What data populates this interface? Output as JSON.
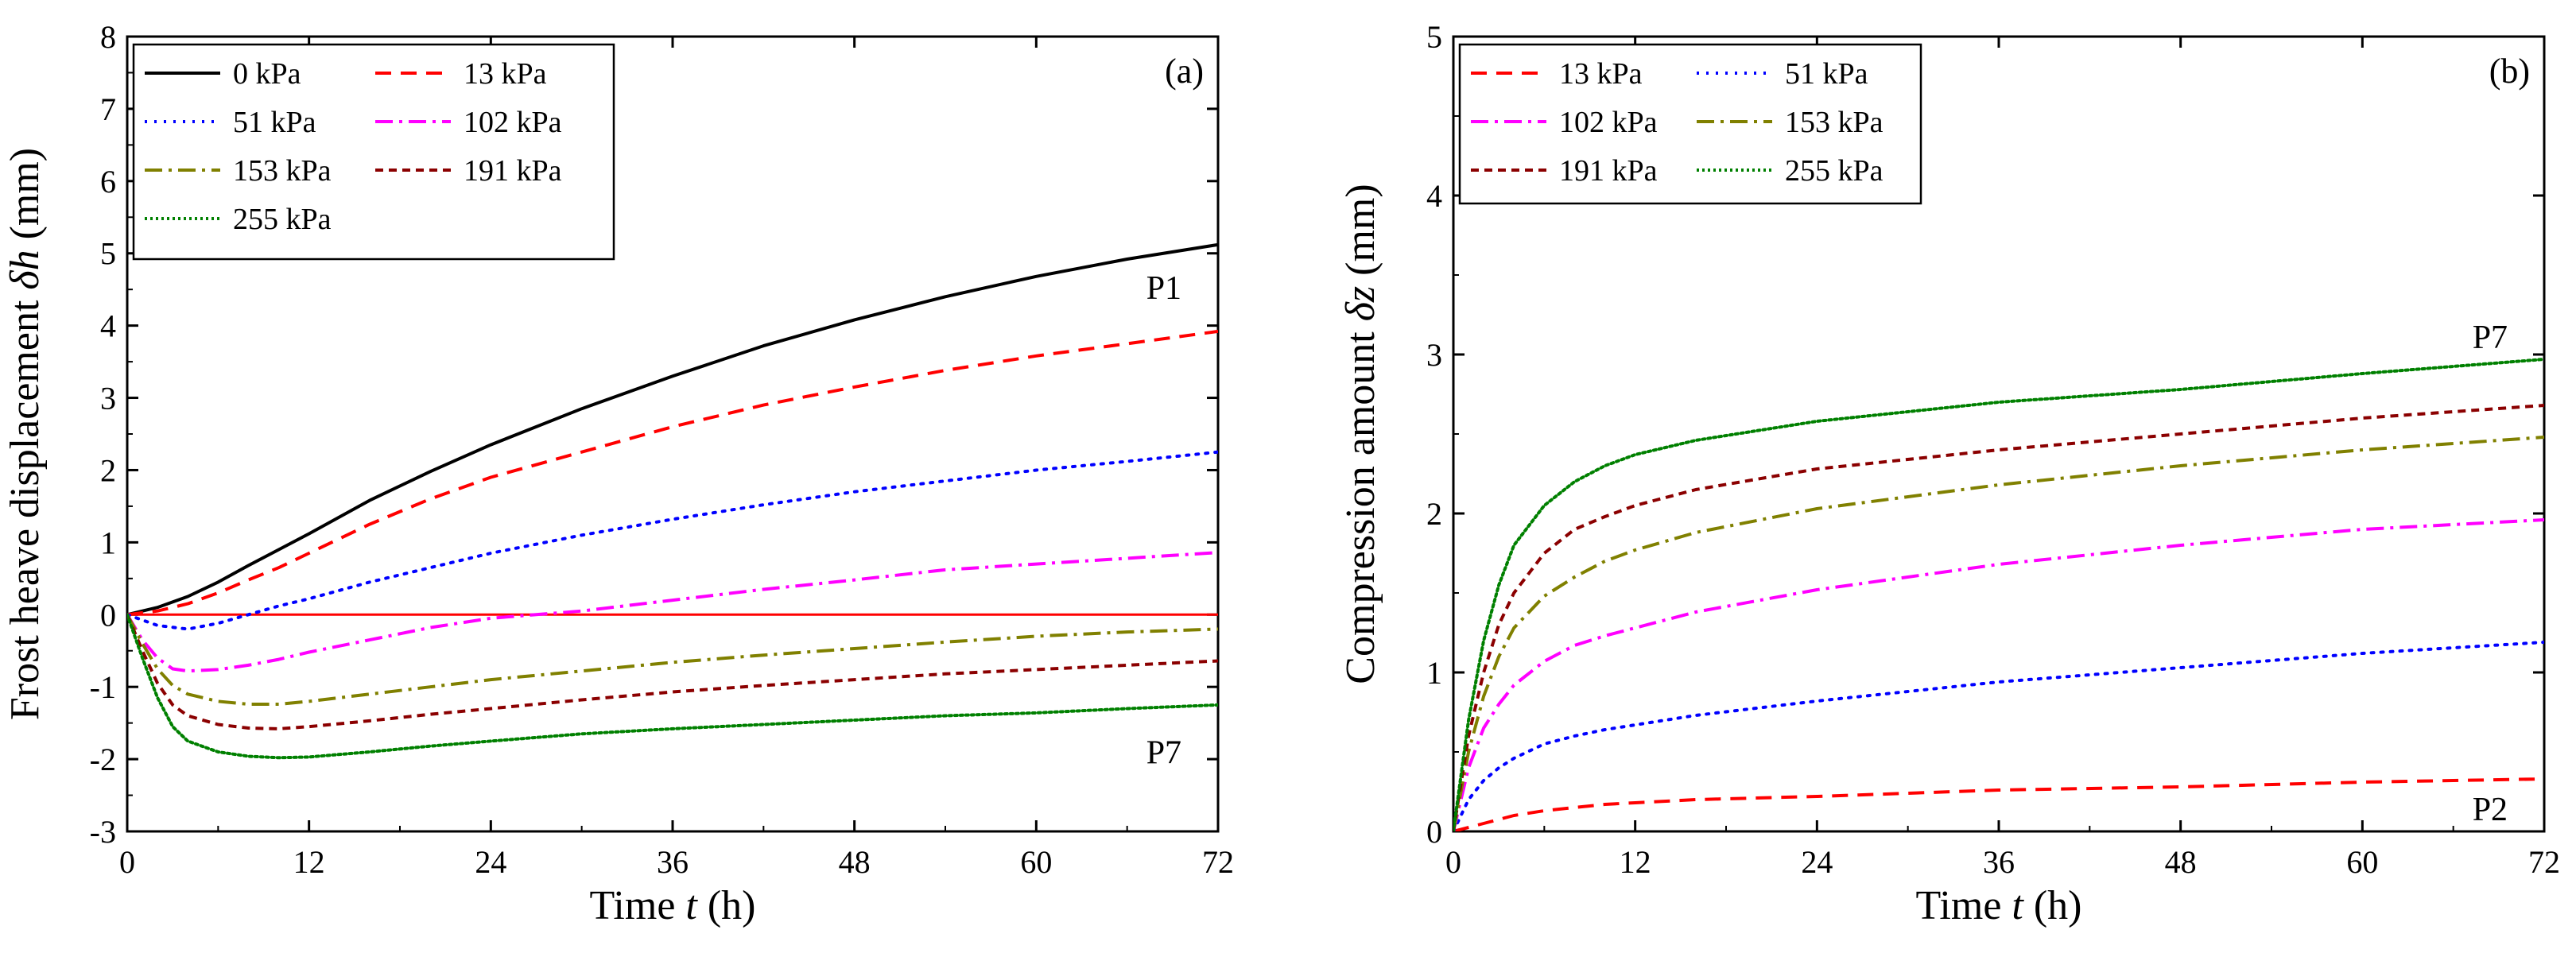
{
  "chart_data": [
    {
      "type": "line",
      "panel_label": "(a)",
      "xlabel": {
        "pre": "Time ",
        "var": "t",
        "post": " (h)"
      },
      "ylabel": {
        "pre": "Frost heave displacement ",
        "var": "δh",
        "post": " (mm)"
      },
      "xlim": [
        0,
        72
      ],
      "ylim": [
        -3,
        8
      ],
      "xticks": [
        0,
        12,
        24,
        36,
        48,
        60,
        72
      ],
      "yticks": [
        -3,
        -2,
        -1,
        0,
        1,
        2,
        3,
        4,
        5,
        6,
        7,
        8
      ],
      "legend_position": "top-left",
      "reference_line": {
        "y": 0,
        "color": "#ff0000"
      },
      "annotations": [
        {
          "text": "P1",
          "x": 70,
          "y": 4.5
        },
        {
          "text": "P7",
          "x": 70,
          "y": -1.75
        }
      ],
      "series": [
        {
          "name": "0 kPa",
          "color": "#000000",
          "dash": "solid",
          "x": [
            0,
            2,
            4,
            6,
            8,
            10,
            12,
            16,
            20,
            24,
            30,
            36,
            42,
            48,
            54,
            60,
            66,
            72
          ],
          "y": [
            0,
            0.1,
            0.25,
            0.45,
            0.68,
            0.9,
            1.12,
            1.58,
            1.98,
            2.35,
            2.85,
            3.3,
            3.72,
            4.08,
            4.4,
            4.68,
            4.92,
            5.12
          ]
        },
        {
          "name": "13 kPa",
          "color": "#ff0000",
          "dash": "dashed",
          "x": [
            0,
            2,
            4,
            6,
            8,
            10,
            12,
            16,
            20,
            24,
            30,
            36,
            42,
            48,
            54,
            60,
            66,
            72
          ],
          "y": [
            0,
            0.05,
            0.15,
            0.3,
            0.48,
            0.65,
            0.85,
            1.25,
            1.6,
            1.9,
            2.25,
            2.6,
            2.9,
            3.15,
            3.38,
            3.58,
            3.75,
            3.92
          ]
        },
        {
          "name": "51 kPa",
          "color": "#0000ff",
          "dash": "dotted",
          "x": [
            0,
            2,
            4,
            6,
            8,
            10,
            12,
            16,
            20,
            24,
            30,
            36,
            42,
            48,
            54,
            60,
            66,
            72
          ],
          "y": [
            0,
            -0.15,
            -0.2,
            -0.12,
            0,
            0.12,
            0.22,
            0.45,
            0.65,
            0.85,
            1.1,
            1.32,
            1.52,
            1.7,
            1.85,
            2.0,
            2.12,
            2.25
          ]
        },
        {
          "name": "102 kPa",
          "color": "#ff00ff",
          "dash": "dashdot",
          "x": [
            0,
            1,
            2,
            3,
            4,
            6,
            8,
            10,
            12,
            16,
            20,
            24,
            30,
            36,
            42,
            48,
            54,
            60,
            66,
            72
          ],
          "y": [
            0,
            -0.35,
            -0.6,
            -0.75,
            -0.78,
            -0.76,
            -0.7,
            -0.62,
            -0.52,
            -0.35,
            -0.18,
            -0.05,
            0.05,
            0.2,
            0.35,
            0.48,
            0.62,
            0.7,
            0.78,
            0.86
          ]
        },
        {
          "name": "153 kPa",
          "color": "#808000",
          "dash": "dashdot",
          "x": [
            0,
            1,
            2,
            3,
            4,
            6,
            8,
            10,
            12,
            16,
            20,
            24,
            30,
            36,
            42,
            48,
            54,
            60,
            66,
            72
          ],
          "y": [
            0,
            -0.4,
            -0.75,
            -0.98,
            -1.1,
            -1.2,
            -1.24,
            -1.24,
            -1.2,
            -1.1,
            -1.0,
            -0.9,
            -0.78,
            -0.66,
            -0.56,
            -0.47,
            -0.38,
            -0.3,
            -0.24,
            -0.2
          ]
        },
        {
          "name": "191 kPa",
          "color": "#8b0000",
          "dash": "shortdash",
          "x": [
            0,
            1,
            2,
            3,
            4,
            6,
            8,
            10,
            12,
            16,
            20,
            24,
            30,
            36,
            42,
            48,
            54,
            60,
            66,
            72
          ],
          "y": [
            0,
            -0.5,
            -0.95,
            -1.25,
            -1.4,
            -1.52,
            -1.57,
            -1.58,
            -1.55,
            -1.47,
            -1.38,
            -1.3,
            -1.18,
            -1.07,
            -0.98,
            -0.9,
            -0.82,
            -0.76,
            -0.7,
            -0.64
          ]
        },
        {
          "name": "255 kPa",
          "color": "#008000",
          "dash": "densedot",
          "x": [
            0,
            1,
            2,
            3,
            4,
            6,
            8,
            10,
            12,
            16,
            20,
            24,
            30,
            36,
            42,
            48,
            54,
            60,
            66,
            72
          ],
          "y": [
            0,
            -0.6,
            -1.15,
            -1.55,
            -1.75,
            -1.9,
            -1.96,
            -1.98,
            -1.97,
            -1.9,
            -1.82,
            -1.75,
            -1.65,
            -1.58,
            -1.52,
            -1.46,
            -1.4,
            -1.36,
            -1.3,
            -1.25
          ]
        }
      ]
    },
    {
      "type": "line",
      "panel_label": "(b)",
      "xlabel": {
        "pre": "Time ",
        "var": "t",
        "post": " (h)"
      },
      "ylabel": {
        "pre": "Compression amount ",
        "var": "δz",
        "post": " (mm)"
      },
      "xlim": [
        0,
        72
      ],
      "ylim": [
        0,
        5
      ],
      "xticks": [
        0,
        12,
        24,
        36,
        48,
        60,
        72
      ],
      "yticks": [
        0,
        1,
        2,
        3,
        4,
        5
      ],
      "legend_position": "top-left",
      "annotations": [
        {
          "text": "P7",
          "x": 70,
          "y": 3.1
        },
        {
          "text": "P2",
          "x": 70,
          "y": 0.13
        }
      ],
      "series": [
        {
          "name": "13 kPa",
          "color": "#ff0000",
          "dash": "dashed",
          "x": [
            0,
            2,
            4,
            6,
            8,
            10,
            12,
            16,
            24,
            36,
            48,
            60,
            72
          ],
          "y": [
            0,
            0.05,
            0.1,
            0.13,
            0.15,
            0.17,
            0.18,
            0.2,
            0.22,
            0.26,
            0.28,
            0.31,
            0.33
          ]
        },
        {
          "name": "51 kPa",
          "color": "#0000ff",
          "dash": "dotted",
          "x": [
            0,
            1,
            2,
            3,
            4,
            6,
            8,
            10,
            12,
            16,
            24,
            36,
            48,
            60,
            72
          ],
          "y": [
            0,
            0.2,
            0.32,
            0.4,
            0.46,
            0.55,
            0.6,
            0.64,
            0.67,
            0.73,
            0.82,
            0.94,
            1.03,
            1.12,
            1.19
          ]
        },
        {
          "name": "102 kPa",
          "color": "#ff00ff",
          "dash": "dashdot",
          "x": [
            0,
            1,
            2,
            3,
            4,
            6,
            8,
            10,
            12,
            16,
            24,
            36,
            48,
            60,
            72
          ],
          "y": [
            0,
            0.4,
            0.65,
            0.8,
            0.92,
            1.07,
            1.17,
            1.23,
            1.28,
            1.38,
            1.52,
            1.68,
            1.8,
            1.9,
            1.96
          ]
        },
        {
          "name": "153 kPa",
          "color": "#808000",
          "dash": "dashdot",
          "x": [
            0,
            1,
            2,
            3,
            4,
            6,
            8,
            10,
            12,
            16,
            24,
            36,
            48,
            60,
            72
          ],
          "y": [
            0,
            0.5,
            0.85,
            1.1,
            1.28,
            1.48,
            1.6,
            1.7,
            1.77,
            1.88,
            2.03,
            2.18,
            2.3,
            2.4,
            2.48
          ]
        },
        {
          "name": "191 kPa",
          "color": "#8b0000",
          "dash": "shortdash",
          "x": [
            0,
            1,
            2,
            3,
            4,
            6,
            8,
            10,
            12,
            16,
            24,
            36,
            48,
            60,
            72
          ],
          "y": [
            0,
            0.6,
            1.0,
            1.3,
            1.5,
            1.75,
            1.9,
            1.98,
            2.05,
            2.15,
            2.28,
            2.4,
            2.5,
            2.6,
            2.68
          ]
        },
        {
          "name": "255 kPa",
          "color": "#008000",
          "dash": "densedot",
          "x": [
            0,
            1,
            2,
            3,
            4,
            6,
            8,
            10,
            12,
            16,
            24,
            36,
            48,
            60,
            72
          ],
          "y": [
            0,
            0.7,
            1.2,
            1.55,
            1.8,
            2.05,
            2.2,
            2.3,
            2.37,
            2.46,
            2.58,
            2.7,
            2.78,
            2.88,
            2.97
          ]
        }
      ]
    }
  ]
}
